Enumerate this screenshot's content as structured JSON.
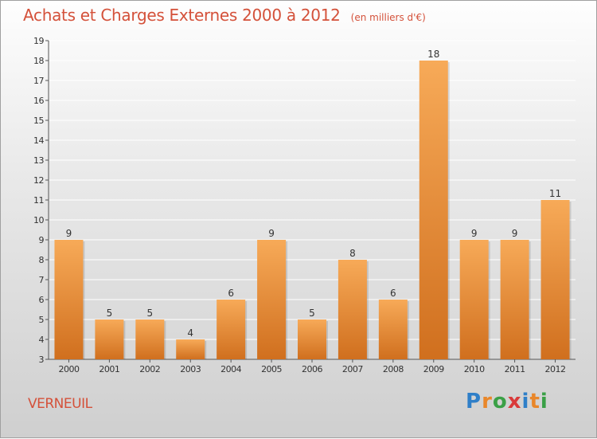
{
  "title": "Achats et Charges Externes 2000 à 2012",
  "unit": "(en milliers d'€)",
  "location": "VERNEUIL",
  "logo": {
    "text": "Proxiti",
    "letters": [
      "P",
      "r",
      "o",
      "x",
      "i",
      "t",
      "i"
    ],
    "colors": [
      "#2f7fc8",
      "#e9872a",
      "#3aa046",
      "#d93b3b",
      "#2f7fc8",
      "#e9872a",
      "#3aa046"
    ]
  },
  "colors": {
    "bar": "#f0953e",
    "bar_light": "#f7aa58",
    "bar_dark": "#d06f1e",
    "title": "#d4513a"
  },
  "chart_data": {
    "type": "bar",
    "categories": [
      "2000",
      "2001",
      "2002",
      "2003",
      "2004",
      "2005",
      "2006",
      "2007",
      "2008",
      "2009",
      "2010",
      "2011",
      "2012"
    ],
    "values": [
      9,
      5,
      5,
      4,
      6,
      9,
      5,
      8,
      6,
      18,
      9,
      9,
      11
    ],
    "ylim": [
      3,
      19
    ],
    "yticks": [
      3,
      4,
      5,
      6,
      7,
      8,
      9,
      10,
      11,
      12,
      13,
      14,
      15,
      16,
      17,
      18,
      19
    ],
    "grid": true,
    "data_labels": true
  }
}
